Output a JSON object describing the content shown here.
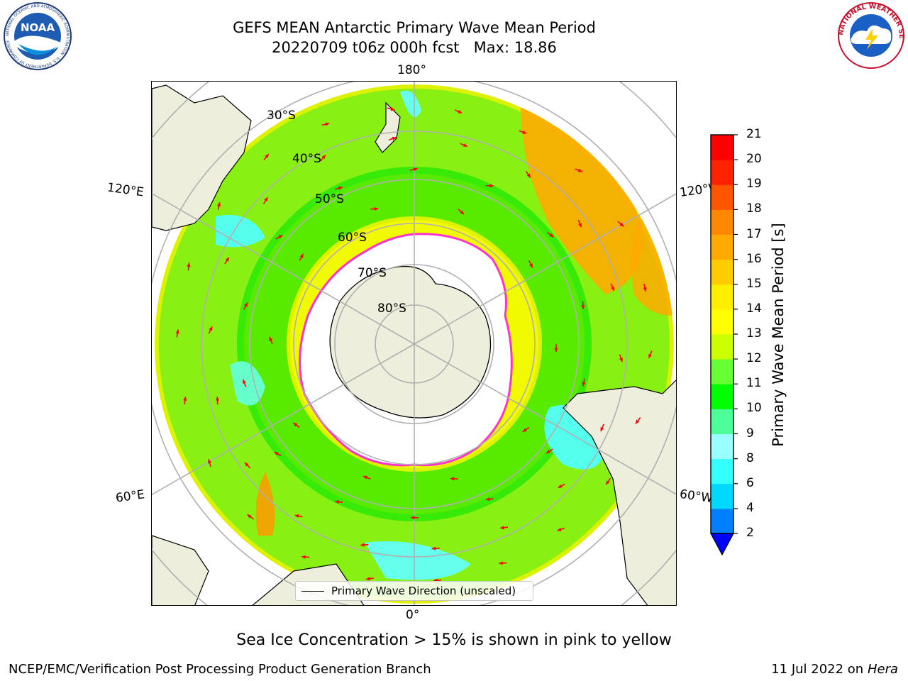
{
  "title": {
    "line1": "GEFS MEAN Antarctic Primary Wave Mean Period",
    "line2": "20220709 t06z 000h fcst   Max: 18.86"
  },
  "logos": {
    "left": "NOAA",
    "right": "NATIONAL WEATHER SERVICE",
    "noaa_ring_text": "NATIONAL OCEANIC AND ATMOSPHERIC ADMINISTRATION · U.S. DEPARTMENT OF COMMERCE"
  },
  "map": {
    "projection": "south polar stereographic",
    "lon_labels": {
      "top": "180°",
      "bottom": "0°",
      "left_upper": "120°E",
      "left_lower": "60°E",
      "right_upper": "120°W",
      "right_lower": "60°W"
    },
    "lat_labels": [
      "30°S",
      "40°S",
      "50°S",
      "60°S",
      "70°S",
      "80°S"
    ],
    "legend_label": "Primary Wave Direction (unscaled)",
    "arrow_color": "#ff0000",
    "sea_ice_edge_color": "#ff33cc",
    "land_color": "#eeeedc"
  },
  "colorbar": {
    "title": "Primary Wave Mean Period [s]",
    "ticks": [
      "2",
      "4",
      "6",
      "8",
      "9",
      "10",
      "11",
      "12",
      "13",
      "14",
      "15",
      "16",
      "17",
      "18",
      "19",
      "20",
      "21"
    ],
    "colors": [
      "#0080ff",
      "#00d9ff",
      "#33ffff",
      "#99ffff",
      "#4dff99",
      "#00ff00",
      "#66ff33",
      "#ccff00",
      "#ffff00",
      "#ffee00",
      "#ffcc00",
      "#ffaa00",
      "#ff8800",
      "#ff5500",
      "#ff2200",
      "#ff0000"
    ],
    "extend_color": "#0000ff"
  },
  "footer": {
    "sea_ice_note": "Sea Ice Concentration > 15% is shown in pink to yellow",
    "left": "NCEP/EMC/Verification Post Processing Product Generation Branch",
    "right_date": "11 Jul 2022 on ",
    "right_host": "Hera"
  }
}
